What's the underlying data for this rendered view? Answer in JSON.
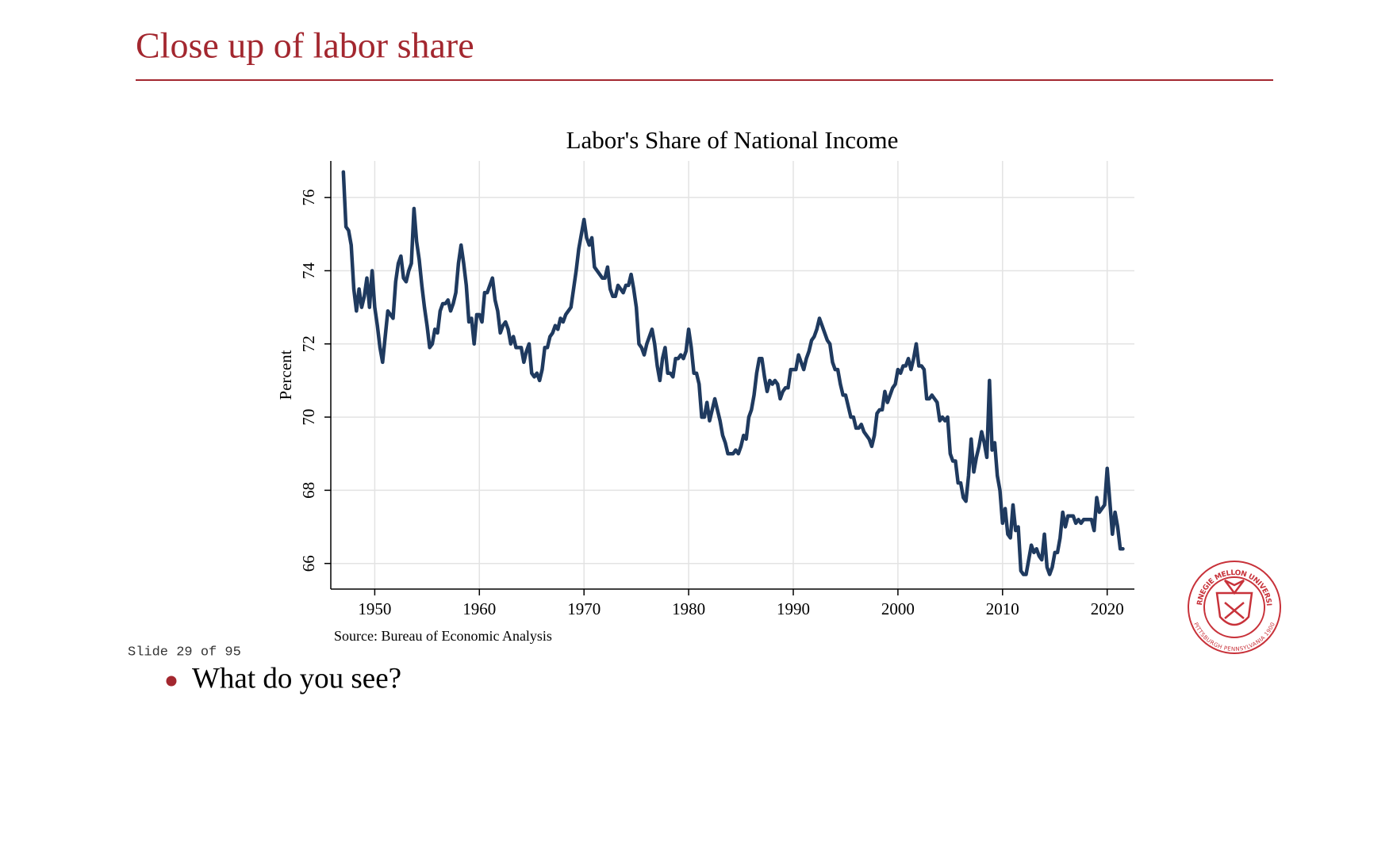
{
  "slide": {
    "title": "Close up of labor share",
    "counter": "Slide 29 of 95",
    "bullets": [
      "What do you see?"
    ]
  },
  "logo": {
    "top": "CARNEGIE MELLON UNIVERSITY",
    "bottom": "PITTSBURGH PENNSYLVANIA 1900"
  },
  "chart_data": {
    "type": "line",
    "title": "Labor's Share of National Income",
    "y_label": "Percent",
    "source": "Source: Bureau of Economic Analysis",
    "color": "#1f3a5f",
    "grid": true,
    "xlim": [
      1945.8,
      2022.6
    ],
    "xticks": [
      1950,
      1960,
      1970,
      1980,
      1990,
      2000,
      2010,
      2020
    ],
    "ylim": [
      65.3,
      77.0
    ],
    "yticks": [
      66,
      68,
      70,
      72,
      74,
      76
    ],
    "x": [
      1947,
      1947.25,
      1947.5,
      1947.75,
      1948,
      1948.25,
      1948.5,
      1948.75,
      1949,
      1949.25,
      1949.5,
      1949.75,
      1950,
      1950.25,
      1950.5,
      1950.75,
      1951,
      1951.25,
      1951.5,
      1951.75,
      1952,
      1952.25,
      1952.5,
      1952.75,
      1953,
      1953.25,
      1953.5,
      1953.75,
      1954,
      1954.25,
      1954.5,
      1954.75,
      1955,
      1955.25,
      1955.5,
      1955.75,
      1956,
      1956.25,
      1956.5,
      1956.75,
      1957,
      1957.25,
      1957.5,
      1957.75,
      1958,
      1958.25,
      1958.5,
      1958.75,
      1959,
      1959.25,
      1959.5,
      1959.75,
      1960,
      1960.25,
      1960.5,
      1960.75,
      1961,
      1961.25,
      1961.5,
      1961.75,
      1962,
      1962.25,
      1962.5,
      1962.75,
      1963,
      1963.25,
      1963.5,
      1963.75,
      1964,
      1964.25,
      1964.5,
      1964.75,
      1965,
      1965.25,
      1965.5,
      1965.75,
      1966,
      1966.25,
      1966.5,
      1966.75,
      1967,
      1967.25,
      1967.5,
      1967.75,
      1968,
      1968.25,
      1968.5,
      1968.75,
      1969,
      1969.25,
      1969.5,
      1969.75,
      1970,
      1970.25,
      1970.5,
      1970.75,
      1971,
      1971.25,
      1971.5,
      1971.75,
      1972,
      1972.25,
      1972.5,
      1972.75,
      1973,
      1973.25,
      1973.5,
      1973.75,
      1974,
      1974.25,
      1974.5,
      1974.75,
      1975,
      1975.25,
      1975.5,
      1975.75,
      1976,
      1976.25,
      1976.5,
      1976.75,
      1977,
      1977.25,
      1977.5,
      1977.75,
      1978,
      1978.25,
      1978.5,
      1978.75,
      1979,
      1979.25,
      1979.5,
      1979.75,
      1980,
      1980.25,
      1980.5,
      1980.75,
      1981,
      1981.25,
      1981.5,
      1981.75,
      1982,
      1982.25,
      1982.5,
      1982.75,
      1983,
      1983.25,
      1983.5,
      1983.75,
      1984,
      1984.25,
      1984.5,
      1984.75,
      1985,
      1985.25,
      1985.5,
      1985.75,
      1986,
      1986.25,
      1986.5,
      1986.75,
      1987,
      1987.25,
      1987.5,
      1987.75,
      1988,
      1988.25,
      1988.5,
      1988.75,
      1989,
      1989.25,
      1989.5,
      1989.75,
      1990,
      1990.25,
      1990.5,
      1990.75,
      1991,
      1991.25,
      1991.5,
      1991.75,
      1992,
      1992.25,
      1992.5,
      1992.75,
      1993,
      1993.25,
      1993.5,
      1993.75,
      1994,
      1994.25,
      1994.5,
      1994.75,
      1995,
      1995.25,
      1995.5,
      1995.75,
      1996,
      1996.25,
      1996.5,
      1996.75,
      1997,
      1997.25,
      1997.5,
      1997.75,
      1998,
      1998.25,
      1998.5,
      1998.75,
      1999,
      1999.25,
      1999.5,
      1999.75,
      2000,
      2000.25,
      2000.5,
      2000.75,
      2001,
      2001.25,
      2001.5,
      2001.75,
      2002,
      2002.25,
      2002.5,
      2002.75,
      2003,
      2003.25,
      2003.5,
      2003.75,
      2004,
      2004.25,
      2004.5,
      2004.75,
      2005,
      2005.25,
      2005.5,
      2005.75,
      2006,
      2006.25,
      2006.5,
      2006.75,
      2007,
      2007.25,
      2007.5,
      2007.75,
      2008,
      2008.25,
      2008.5,
      2008.75,
      2009,
      2009.25,
      2009.5,
      2009.75,
      2010,
      2010.25,
      2010.5,
      2010.75,
      2011,
      2011.25,
      2011.5,
      2011.75,
      2012,
      2012.25,
      2012.5,
      2012.75,
      2013,
      2013.25,
      2013.5,
      2013.75,
      2014,
      2014.25,
      2014.5,
      2014.75,
      2015,
      2015.25,
      2015.5,
      2015.75,
      2016,
      2016.25,
      2016.5,
      2016.75,
      2017,
      2017.25,
      2017.5,
      2017.75,
      2018,
      2018.25,
      2018.5,
      2018.75,
      2019,
      2019.25,
      2019.5,
      2019.75,
      2020,
      2020.25,
      2020.5,
      2020.75,
      2021,
      2021.25,
      2021.5
    ],
    "values": [
      76.7,
      75.2,
      75.1,
      74.7,
      73.5,
      72.9,
      73.5,
      73.0,
      73.3,
      73.8,
      73.0,
      74.0,
      73.0,
      72.5,
      71.9,
      71.5,
      72.2,
      72.9,
      72.8,
      72.7,
      73.7,
      74.2,
      74.4,
      73.8,
      73.7,
      74.0,
      74.2,
      75.7,
      74.8,
      74.3,
      73.6,
      73.0,
      72.5,
      71.9,
      72.0,
      72.4,
      72.3,
      72.9,
      73.1,
      73.1,
      73.2,
      72.9,
      73.1,
      73.4,
      74.2,
      74.7,
      74.2,
      73.6,
      72.6,
      72.7,
      72.0,
      72.8,
      72.8,
      72.6,
      73.4,
      73.4,
      73.6,
      73.8,
      73.2,
      72.9,
      72.3,
      72.5,
      72.6,
      72.4,
      72.0,
      72.2,
      71.9,
      71.9,
      71.9,
      71.5,
      71.8,
      72.0,
      71.2,
      71.1,
      71.2,
      71.0,
      71.3,
      71.9,
      71.9,
      72.2,
      72.3,
      72.5,
      72.4,
      72.7,
      72.6,
      72.8,
      72.9,
      73.0,
      73.5,
      74.0,
      74.6,
      75.0,
      75.4,
      74.9,
      74.7,
      74.9,
      74.1,
      74.0,
      73.9,
      73.8,
      73.8,
      74.1,
      73.5,
      73.3,
      73.3,
      73.6,
      73.5,
      73.4,
      73.6,
      73.6,
      73.9,
      73.5,
      73.0,
      72.0,
      71.9,
      71.7,
      72.0,
      72.2,
      72.4,
      72.0,
      71.4,
      71.0,
      71.6,
      71.9,
      71.2,
      71.2,
      71.1,
      71.6,
      71.6,
      71.7,
      71.6,
      71.8,
      72.4,
      71.9,
      71.2,
      71.2,
      70.9,
      70.0,
      70.0,
      70.4,
      69.9,
      70.2,
      70.5,
      70.2,
      69.9,
      69.5,
      69.3,
      69.0,
      69.0,
      69.0,
      69.1,
      69.0,
      69.2,
      69.5,
      69.4,
      70.0,
      70.2,
      70.6,
      71.2,
      71.6,
      71.6,
      71.1,
      70.7,
      71.0,
      70.9,
      71.0,
      70.9,
      70.5,
      70.7,
      70.8,
      70.8,
      71.3,
      71.3,
      71.3,
      71.7,
      71.5,
      71.3,
      71.6,
      71.8,
      72.1,
      72.2,
      72.4,
      72.7,
      72.5,
      72.3,
      72.1,
      72.0,
      71.5,
      71.3,
      71.3,
      70.9,
      70.6,
      70.6,
      70.3,
      70.0,
      70.0,
      69.7,
      69.7,
      69.8,
      69.6,
      69.5,
      69.4,
      69.2,
      69.5,
      70.1,
      70.2,
      70.2,
      70.7,
      70.4,
      70.6,
      70.8,
      70.9,
      71.3,
      71.2,
      71.4,
      71.4,
      71.6,
      71.3,
      71.6,
      72.0,
      71.4,
      71.4,
      71.3,
      70.5,
      70.5,
      70.6,
      70.5,
      70.4,
      69.9,
      70.0,
      69.9,
      70.0,
      69.0,
      68.8,
      68.8,
      68.2,
      68.2,
      67.8,
      67.7,
      68.4,
      69.4,
      68.5,
      68.9,
      69.2,
      69.6,
      69.3,
      68.9,
      71.0,
      69.1,
      69.3,
      68.4,
      68.0,
      67.1,
      67.5,
      66.8,
      66.7,
      67.6,
      66.9,
      67.0,
      65.8,
      65.7,
      65.7,
      66.1,
      66.5,
      66.3,
      66.4,
      66.2,
      66.1,
      66.8,
      65.9,
      65.7,
      65.9,
      66.3,
      66.3,
      66.7,
      67.4,
      67.0,
      67.3,
      67.3,
      67.3,
      67.1,
      67.2,
      67.1,
      67.2,
      67.2,
      67.2,
      67.2,
      66.9,
      67.8,
      67.4,
      67.5,
      67.6,
      68.6,
      67.7,
      66.8,
      67.4,
      67.0,
      66.4,
      66.4
    ]
  }
}
